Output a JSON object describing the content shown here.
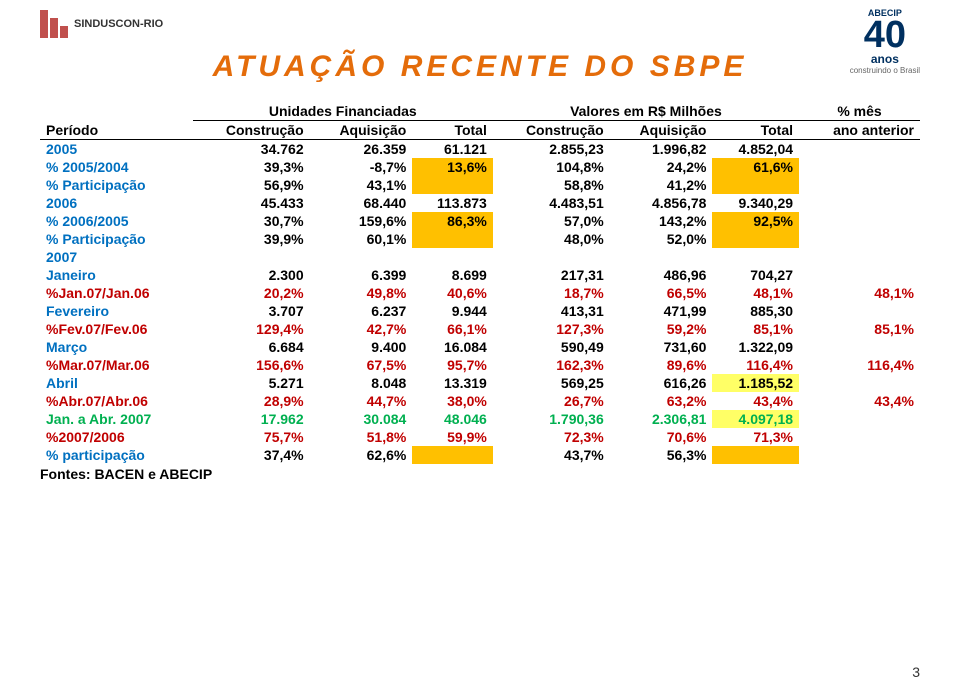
{
  "logo_left": "SINDUSCON-RIO",
  "logo_right": {
    "brand": "ABECIP",
    "num": "40",
    "anos": "anos",
    "sub": "construindo o Brasil"
  },
  "title": "ATUAÇÃO RECENTE DO SBPE",
  "group_headers": {
    "units": "Unidades Financiadas",
    "values": "Valores em R$ Milhões",
    "pct": "% mês"
  },
  "headers": {
    "periodo": "Período",
    "cons": "Construção",
    "aqui": "Aquisição",
    "total": "Total",
    "ano": "ano anterior"
  },
  "rows": [
    {
      "lbl": "2005",
      "c": [
        "34.762",
        "26.359",
        "61.121",
        "2.855,23",
        "1.996,82",
        "4.852,04",
        ""
      ],
      "bold": true,
      "lblcolor": "blue"
    },
    {
      "lbl": "% 2005/2004",
      "c": [
        "39,3%",
        "-8,7%",
        "13,6%",
        "104,8%",
        "24,2%",
        "61,6%",
        ""
      ],
      "bold": true,
      "lblcolor": "blue",
      "hl": [
        2,
        5
      ]
    },
    {
      "lbl": "% Participação",
      "c": [
        "56,9%",
        "43,1%",
        "",
        "58,8%",
        "41,2%",
        "",
        ""
      ],
      "bold": true,
      "lblcolor": "blue",
      "hl": [
        2,
        5
      ]
    },
    {
      "lbl": "2006",
      "c": [
        "45.433",
        "68.440",
        "113.873",
        "4.483,51",
        "4.856,78",
        "9.340,29",
        ""
      ],
      "bold": true,
      "lblcolor": "blue"
    },
    {
      "lbl": "% 2006/2005",
      "c": [
        "30,7%",
        "159,6%",
        "86,3%",
        "57,0%",
        "143,2%",
        "92,5%",
        ""
      ],
      "bold": true,
      "lblcolor": "blue",
      "hl": [
        2,
        5
      ]
    },
    {
      "lbl": "% Participação",
      "c": [
        "39,9%",
        "60,1%",
        "",
        "48,0%",
        "52,0%",
        "",
        ""
      ],
      "bold": true,
      "lblcolor": "blue",
      "hl": [
        2,
        5
      ]
    },
    {
      "lbl": "2007",
      "c": [
        "",
        "",
        "",
        "",
        "",
        "",
        ""
      ],
      "bold": true,
      "lblcolor": "blue"
    },
    {
      "lbl": "Janeiro",
      "c": [
        "2.300",
        "6.399",
        "8.699",
        "217,31",
        "486,96",
        "704,27",
        ""
      ],
      "bold": true,
      "lblcolor": "blue"
    },
    {
      "lbl": "%Jan.07/Jan.06",
      "c": [
        "20,2%",
        "49,8%",
        "40,6%",
        "18,7%",
        "66,5%",
        "48,1%",
        "48,1%"
      ],
      "bold": true,
      "lblcolor": "red",
      "color": "red"
    },
    {
      "lbl": "Fevereiro",
      "c": [
        "3.707",
        "6.237",
        "9.944",
        "413,31",
        "471,99",
        "885,30",
        ""
      ],
      "bold": true,
      "lblcolor": "blue"
    },
    {
      "lbl": "%Fev.07/Fev.06",
      "c": [
        "129,4%",
        "42,7%",
        "66,1%",
        "127,3%",
        "59,2%",
        "85,1%",
        "85,1%"
      ],
      "bold": true,
      "lblcolor": "red",
      "color": "red"
    },
    {
      "lbl": "Março",
      "c": [
        "6.684",
        "9.400",
        "16.084",
        "590,49",
        "731,60",
        "1.322,09",
        ""
      ],
      "bold": true,
      "lblcolor": "blue"
    },
    {
      "lbl": "%Mar.07/Mar.06",
      "c": [
        "156,6%",
        "67,5%",
        "95,7%",
        "162,3%",
        "89,6%",
        "116,4%",
        "116,4%"
      ],
      "bold": true,
      "lblcolor": "red",
      "color": "red"
    },
    {
      "lbl": "Abril",
      "c": [
        "5.271",
        "8.048",
        "13.319",
        "569,25",
        "616,26",
        "1.185,52",
        ""
      ],
      "bold": true,
      "lblcolor": "blue",
      "hlyellow": [
        5
      ]
    },
    {
      "lbl": "%Abr.07/Abr.06",
      "c": [
        "28,9%",
        "44,7%",
        "38,0%",
        "26,7%",
        "63,2%",
        "43,4%",
        "43,4%"
      ],
      "bold": true,
      "lblcolor": "red",
      "color": "red"
    },
    {
      "lbl": "Jan. a Abr. 2007",
      "c": [
        "17.962",
        "30.084",
        "48.046",
        "1.790,36",
        "2.306,81",
        "4.097,18",
        ""
      ],
      "bold": true,
      "lblcolor": "green",
      "color": "green",
      "hlyellow": [
        5
      ]
    },
    {
      "lbl": "%2007/2006",
      "c": [
        "75,7%",
        "51,8%",
        "59,9%",
        "72,3%",
        "70,6%",
        "71,3%",
        ""
      ],
      "bold": true,
      "lblcolor": "red",
      "color": "red"
    },
    {
      "lbl": "% participação",
      "c": [
        "37,4%",
        "62,6%",
        "",
        "43,7%",
        "56,3%",
        "",
        ""
      ],
      "bold": true,
      "lblcolor": "blue",
      "hl": [
        2,
        5
      ]
    }
  ],
  "footer": "Fontes: BACEN e ABECIP",
  "pagenum": "3"
}
